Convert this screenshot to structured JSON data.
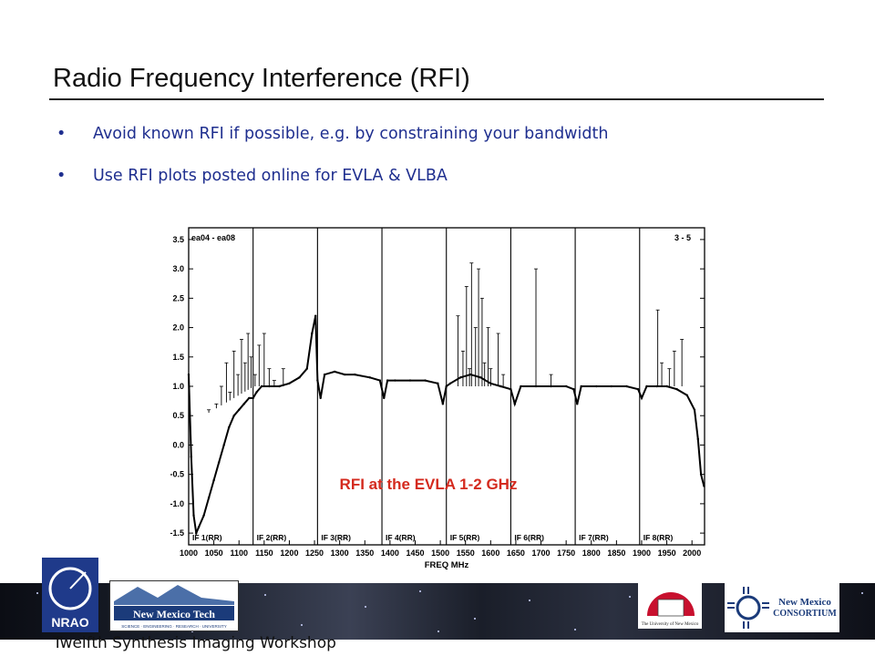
{
  "slide": {
    "title": "Radio Frequency Interference (RFI)",
    "bullets": [
      "Avoid known RFI if possible, e.g. by constraining your bandwidth",
      "Use RFI plots posted online for EVLA & VLBA"
    ],
    "bullet_glyph": "•",
    "footer": "Twelfth Synthesis Imaging Workshop"
  },
  "figure": {
    "caption": "RFI at the EVLA 1-2 GHz",
    "caption_color": "#d42a1e",
    "corner_left": "ea04 - ea08",
    "corner_right": "3 - 5"
  },
  "chart_data": {
    "type": "line",
    "xlabel": "FREQ MHz",
    "xlim": [
      1000,
      2025
    ],
    "ylim": [
      -1.7,
      3.7
    ],
    "x_ticks": [
      1000,
      1050,
      1100,
      1150,
      1200,
      1250,
      1300,
      1350,
      1400,
      1450,
      1500,
      1550,
      1600,
      1650,
      1700,
      1750,
      1800,
      1850,
      1900,
      1950,
      2000
    ],
    "y_ticks": [
      3.5,
      3.0,
      2.5,
      2.0,
      1.5,
      1.0,
      0.5,
      0.0,
      -0.5,
      -1.0,
      -1.5
    ],
    "y_tick_labels": [
      "3.5",
      "3.0",
      "2.5",
      "2.0",
      "1.5",
      "1.0",
      "0.5",
      "0.0",
      "-0.5",
      "-1.0",
      "-1.5"
    ],
    "if_bands": [
      {
        "label": "IF 1(RR)",
        "start": 1000,
        "end": 1128
      },
      {
        "label": "IF 2(RR)",
        "start": 1128,
        "end": 1256
      },
      {
        "label": "IF 3(RR)",
        "start": 1256,
        "end": 1384
      },
      {
        "label": "IF 4(RR)",
        "start": 1384,
        "end": 1512
      },
      {
        "label": "IF 5(RR)",
        "start": 1512,
        "end": 1640
      },
      {
        "label": "IF 6(RR)",
        "start": 1640,
        "end": 1768
      },
      {
        "label": "IF 7(RR)",
        "start": 1768,
        "end": 1896
      },
      {
        "label": "IF 8(RR)",
        "start": 1896,
        "end": 2024
      }
    ],
    "series": [
      {
        "values_x": [
          1000,
          1005,
          1010,
          1015,
          1020,
          1030,
          1040,
          1050,
          1060,
          1070,
          1080,
          1090,
          1100,
          1110,
          1120,
          1128,
          1135,
          1145,
          1160,
          1180,
          1200,
          1220,
          1235,
          1245,
          1252,
          1256,
          1262,
          1270,
          1290,
          1310,
          1330,
          1360,
          1380,
          1388,
          1395,
          1410,
          1440,
          1470,
          1495,
          1505,
          1512,
          1520,
          1540,
          1560,
          1580,
          1600,
          1620,
          1640,
          1648,
          1660,
          1690,
          1720,
          1750,
          1765,
          1772,
          1780,
          1810,
          1840,
          1870,
          1893,
          1900,
          1910,
          1930,
          1950,
          1970,
          1990,
          2005,
          2012,
          2018,
          2024
        ],
        "values_y": [
          1.2,
          -0.2,
          -1.2,
          -1.5,
          -1.4,
          -1.2,
          -0.9,
          -0.6,
          -0.3,
          0.0,
          0.3,
          0.5,
          0.6,
          0.7,
          0.8,
          0.8,
          0.9,
          1.0,
          1.0,
          1.0,
          1.05,
          1.15,
          1.3,
          1.9,
          2.2,
          1.1,
          0.8,
          1.2,
          1.25,
          1.2,
          1.2,
          1.15,
          1.1,
          0.8,
          1.1,
          1.1,
          1.1,
          1.1,
          1.05,
          0.7,
          1.0,
          1.05,
          1.15,
          1.2,
          1.15,
          1.05,
          1.0,
          0.95,
          0.7,
          1.0,
          1.0,
          1.0,
          1.0,
          0.95,
          0.7,
          1.0,
          1.0,
          1.0,
          1.0,
          0.95,
          0.8,
          1.0,
          1.0,
          1.0,
          0.95,
          0.85,
          0.6,
          0.1,
          -0.5,
          -0.7
        ]
      },
      {
        "spikes": [
          [
            1040,
            0.6
          ],
          [
            1055,
            0.7
          ],
          [
            1065,
            1.0
          ],
          [
            1075,
            1.4
          ],
          [
            1082,
            0.9
          ],
          [
            1090,
            1.6
          ],
          [
            1098,
            1.2
          ],
          [
            1105,
            1.8
          ],
          [
            1112,
            1.4
          ],
          [
            1118,
            1.9
          ],
          [
            1124,
            1.5
          ],
          [
            1132,
            1.2
          ],
          [
            1140,
            1.7
          ],
          [
            1150,
            1.9
          ],
          [
            1160,
            1.3
          ],
          [
            1170,
            1.1
          ],
          [
            1188,
            1.3
          ],
          [
            1535,
            2.2
          ],
          [
            1545,
            1.6
          ],
          [
            1552,
            2.7
          ],
          [
            1558,
            1.3
          ],
          [
            1562,
            3.1
          ],
          [
            1570,
            2.0
          ],
          [
            1576,
            3.0
          ],
          [
            1583,
            2.5
          ],
          [
            1588,
            1.4
          ],
          [
            1595,
            2.0
          ],
          [
            1600,
            1.3
          ],
          [
            1615,
            1.9
          ],
          [
            1625,
            1.2
          ],
          [
            1690,
            3.0
          ],
          [
            1720,
            1.2
          ],
          [
            1750,
            1.0
          ],
          [
            1932,
            2.3
          ],
          [
            1940,
            1.4
          ],
          [
            1955,
            1.3
          ],
          [
            1965,
            1.6
          ],
          [
            1980,
            1.8
          ]
        ]
      }
    ]
  }
}
